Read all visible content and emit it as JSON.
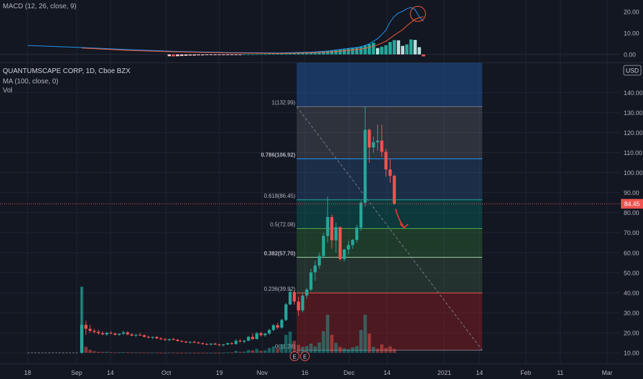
{
  "colors": {
    "background": "#131722",
    "grid": "#1f2433",
    "up": "#26a69a",
    "down": "#ef5350",
    "macd_line": "#2196f3",
    "signal_line": "#ff5a36",
    "price_line": "#ef5350",
    "fib_text": "#b2b5be"
  },
  "macd": {
    "label": "MACD (12, 26, close, 9)",
    "axis_ticks": [
      "20.00",
      "10.00",
      "0.00"
    ],
    "macd_line": [
      [
        0,
        4.2
      ],
      [
        12,
        3.3
      ],
      [
        24,
        2.3
      ],
      [
        36,
        1.4
      ],
      [
        48,
        0.9
      ],
      [
        60,
        0.7
      ],
      [
        64,
        0.9
      ],
      [
        68,
        1.1
      ],
      [
        72,
        1.6
      ],
      [
        76,
        2.6
      ],
      [
        80,
        3.5
      ],
      [
        82,
        5.0
      ],
      [
        84,
        7.4
      ],
      [
        85,
        9.3
      ],
      [
        86,
        11.4
      ],
      [
        87,
        15.2
      ],
      [
        88,
        17.8
      ],
      [
        89,
        19.4
      ],
      [
        90,
        20.2
      ],
      [
        91,
        21.4
      ],
      [
        92,
        22.0
      ],
      [
        93,
        21.0
      ],
      [
        94,
        17.6
      ],
      [
        95,
        15.5
      ]
    ],
    "signal_line": [
      [
        13,
        3.0
      ],
      [
        24,
        1.9
      ],
      [
        36,
        1.2
      ],
      [
        48,
        0.7
      ],
      [
        60,
        0.5
      ],
      [
        64,
        0.6
      ],
      [
        68,
        0.8
      ],
      [
        72,
        1.1
      ],
      [
        76,
        1.7
      ],
      [
        80,
        2.5
      ],
      [
        82,
        3.3
      ],
      [
        84,
        4.5
      ],
      [
        86,
        6.2
      ],
      [
        88,
        9.0
      ],
      [
        90,
        11.6
      ],
      [
        91,
        13.4
      ],
      [
        92,
        15.0
      ],
      [
        93,
        16.5
      ],
      [
        94,
        17.2
      ],
      [
        95,
        17.6
      ]
    ],
    "histogram": [
      [
        34,
        -0.8
      ],
      [
        35,
        -0.9
      ],
      [
        36,
        -0.8
      ],
      [
        37,
        -0.7
      ],
      [
        38,
        -0.6
      ],
      [
        39,
        -0.5
      ],
      [
        40,
        -0.5
      ],
      [
        41,
        -0.4
      ],
      [
        42,
        -0.4
      ],
      [
        43,
        -0.3
      ],
      [
        44,
        -0.3
      ],
      [
        45,
        -0.3
      ],
      [
        46,
        -0.2
      ],
      [
        47,
        -0.2
      ],
      [
        48,
        -0.2
      ],
      [
        49,
        -0.2
      ],
      [
        50,
        -0.1
      ],
      [
        51,
        -0.1
      ],
      [
        52,
        0.1
      ],
      [
        53,
        0.1
      ],
      [
        54,
        0.1
      ],
      [
        55,
        0.2
      ],
      [
        56,
        0.2
      ],
      [
        57,
        0.2
      ],
      [
        58,
        0.3
      ],
      [
        59,
        0.3
      ],
      [
        60,
        0.3
      ],
      [
        61,
        0.4
      ],
      [
        62,
        0.4
      ],
      [
        63,
        0.5
      ],
      [
        64,
        0.5
      ],
      [
        65,
        0.6
      ],
      [
        66,
        0.7
      ],
      [
        67,
        0.8
      ],
      [
        68,
        0.9
      ],
      [
        69,
        1.0
      ],
      [
        70,
        1.2
      ],
      [
        71,
        1.4
      ],
      [
        72,
        1.6
      ],
      [
        73,
        1.8
      ],
      [
        74,
        2.0
      ],
      [
        75,
        2.3
      ],
      [
        76,
        2.5
      ],
      [
        77,
        2.8
      ],
      [
        78,
        3.1
      ],
      [
        79,
        3.4
      ],
      [
        80,
        3.8
      ],
      [
        81,
        4.2
      ],
      [
        82,
        4.8
      ],
      [
        83,
        5.5
      ],
      [
        84,
        3.0
      ],
      [
        85,
        3.6
      ],
      [
        86,
        4.3
      ],
      [
        87,
        5.8
      ],
      [
        88,
        6.7
      ],
      [
        89,
        6.6
      ],
      [
        90,
        4.0
      ],
      [
        91,
        4.7
      ],
      [
        92,
        7.0
      ],
      [
        93,
        6.8
      ],
      [
        94,
        3.4
      ],
      [
        95,
        -0.9
      ]
    ]
  },
  "main": {
    "symbol": "QUANTUMSCAPE CORP, 1D, Cboe BZX",
    "ma_label": "MA (100, close, 0)",
    "vol_label": "Vol",
    "currency": "USD",
    "axis_ticks": [
      "140.00",
      "130.00",
      "120.00",
      "110.00",
      "100.00",
      "90.00",
      "80.00",
      "70.00",
      "60.00",
      "50.00",
      "40.00",
      "30.00",
      "20.00",
      "10.00"
    ],
    "price_label": "84.45",
    "badge_e1": "E",
    "badge_e2": "E",
    "x_ticks": [
      "18",
      "Sep",
      "14",
      "Oct",
      "19",
      "Nov",
      "16",
      "Dec",
      "14",
      "2021",
      "14",
      "Feb",
      "11",
      "Mar"
    ]
  },
  "chart_data": {
    "type": "candlestick",
    "title": "QUANTUMSCAPE CORP, 1D, Cboe BZX",
    "ylabel": "USD",
    "ylim": [
      7,
      148
    ],
    "x_axis": [
      "18",
      "Sep",
      "14",
      "Oct",
      "19",
      "Nov",
      "16",
      "Dec",
      "14",
      "2021",
      "14",
      "Feb",
      "11",
      "Mar"
    ],
    "last_price": 84.45,
    "fib_levels": [
      {
        "label": "1(132.99)",
        "value": 132.99
      },
      {
        "label": "0.786(106.92)",
        "value": 106.92
      },
      {
        "label": "0.618(86.45)",
        "value": 86.45
      },
      {
        "label": "0.5(72.08)",
        "value": 72.08
      },
      {
        "label": "0.382(57.70)",
        "value": 57.7
      },
      {
        "label": "0.236(39.92)",
        "value": 39.92
      },
      {
        "label": "0(11.28)",
        "value": 11.28
      }
    ],
    "pre_listing": [
      [
        0,
        10.0
      ],
      [
        1,
        10.0
      ],
      [
        2,
        10.0
      ],
      [
        3,
        10.0
      ],
      [
        4,
        10.0
      ],
      [
        5,
        10.0
      ],
      [
        6,
        10.0
      ],
      [
        7,
        10.0
      ],
      [
        8,
        10.0
      ],
      [
        9,
        10.0
      ],
      [
        10,
        10.0
      ],
      [
        11,
        10.0
      ],
      [
        12,
        10.0
      ]
    ],
    "candles": [
      [
        13,
        10.0,
        43.0,
        9.5,
        24.0
      ],
      [
        14,
        24.0,
        26.0,
        19.0,
        22.0
      ],
      [
        15,
        22.0,
        24.0,
        20.0,
        21.0
      ],
      [
        16,
        21.0,
        22.0,
        19.5,
        20.5
      ],
      [
        17,
        20.5,
        21.5,
        19.0,
        19.8
      ],
      [
        18,
        19.8,
        20.8,
        18.8,
        19.2
      ],
      [
        19,
        19.2,
        20.5,
        18.5,
        20.0
      ],
      [
        20,
        20.0,
        20.8,
        19.2,
        19.6
      ],
      [
        21,
        19.6,
        20.2,
        18.6,
        19.0
      ],
      [
        22,
        19.0,
        19.8,
        18.4,
        19.5
      ],
      [
        23,
        19.5,
        21.0,
        19.0,
        20.2
      ],
      [
        24,
        20.2,
        20.8,
        18.8,
        19.2
      ],
      [
        25,
        19.2,
        19.8,
        18.2,
        18.6
      ],
      [
        26,
        18.6,
        19.4,
        17.8,
        19.0
      ],
      [
        27,
        19.0,
        20.0,
        18.4,
        18.8
      ],
      [
        28,
        18.8,
        19.2,
        17.6,
        18.0
      ],
      [
        29,
        18.0,
        18.6,
        17.2,
        17.6
      ],
      [
        30,
        17.6,
        18.2,
        16.8,
        17.9
      ],
      [
        31,
        17.9,
        18.4,
        16.9,
        17.2
      ],
      [
        32,
        17.2,
        17.8,
        16.4,
        16.8
      ],
      [
        33,
        16.8,
        17.4,
        16.0,
        16.4
      ],
      [
        34,
        16.4,
        17.0,
        15.8,
        16.9
      ],
      [
        35,
        16.9,
        17.4,
        16.2,
        16.5
      ],
      [
        36,
        16.5,
        17.0,
        15.6,
        15.9
      ],
      [
        37,
        15.9,
        16.4,
        15.2,
        15.6
      ],
      [
        38,
        15.6,
        16.0,
        14.8,
        15.2
      ],
      [
        39,
        15.2,
        15.8,
        14.6,
        15.5
      ],
      [
        40,
        15.5,
        16.0,
        14.9,
        15.1
      ],
      [
        41,
        15.1,
        15.6,
        14.4,
        14.8
      ],
      [
        42,
        14.8,
        15.2,
        14.0,
        14.4
      ],
      [
        43,
        14.4,
        14.9,
        13.8,
        14.2
      ],
      [
        44,
        14.2,
        14.8,
        13.6,
        14.6
      ],
      [
        45,
        14.6,
        15.0,
        14.0,
        14.1
      ],
      [
        46,
        14.1,
        14.6,
        13.4,
        13.8
      ],
      [
        47,
        13.8,
        14.4,
        13.2,
        14.2
      ],
      [
        48,
        14.2,
        15.2,
        13.8,
        14.8
      ],
      [
        49,
        14.8,
        15.4,
        14.0,
        14.4
      ],
      [
        50,
        14.4,
        16.8,
        14.0,
        16.0
      ],
      [
        51,
        16.0,
        17.0,
        15.0,
        15.6
      ],
      [
        52,
        15.6,
        16.4,
        14.8,
        16.1
      ],
      [
        53,
        16.1,
        18.4,
        15.8,
        18.0
      ],
      [
        54,
        18.0,
        19.8,
        16.4,
        16.9
      ],
      [
        55,
        16.9,
        20.4,
        16.6,
        19.8
      ],
      [
        56,
        19.8,
        20.6,
        18.2,
        18.8
      ],
      [
        57,
        18.8,
        20.0,
        18.0,
        19.6
      ],
      [
        58,
        19.6,
        22.0,
        19.0,
        21.4
      ],
      [
        59,
        21.4,
        24.4,
        20.8,
        23.8
      ],
      [
        60,
        23.8,
        25.0,
        21.8,
        22.6
      ],
      [
        61,
        22.6,
        27.0,
        22.0,
        26.4
      ],
      [
        62,
        26.4,
        35.0,
        25.8,
        34.2
      ],
      [
        63,
        34.2,
        42.0,
        33.8,
        40.4
      ],
      [
        64,
        40.4,
        41.0,
        34.0,
        35.6
      ],
      [
        65,
        35.6,
        38.0,
        28.5,
        31.2
      ],
      [
        66,
        31.2,
        40.0,
        30.2,
        38.6
      ],
      [
        67,
        38.6,
        42.5,
        37.0,
        41.6
      ],
      [
        68,
        41.6,
        52.0,
        40.8,
        50.2
      ],
      [
        69,
        50.2,
        56.0,
        46.0,
        53.6
      ],
      [
        70,
        53.6,
        60.0,
        52.0,
        58.4
      ],
      [
        71,
        58.4,
        70.0,
        57.2,
        68.4
      ],
      [
        72,
        68.4,
        88.0,
        65.0,
        77.8
      ],
      [
        73,
        77.8,
        79.0,
        62.0,
        66.2
      ],
      [
        74,
        66.2,
        75.0,
        60.0,
        72.8
      ],
      [
        75,
        72.8,
        73.0,
        56.0,
        56.8
      ],
      [
        76,
        56.8,
        62.0,
        55.6,
        61.6
      ],
      [
        77,
        61.6,
        66.0,
        59.0,
        63.8
      ],
      [
        78,
        63.8,
        67.0,
        62.0,
        66.4
      ],
      [
        79,
        66.4,
        74.0,
        65.0,
        72.6
      ],
      [
        80,
        72.6,
        86.0,
        71.0,
        85.0
      ],
      [
        81,
        85.0,
        132.99,
        83.0,
        121.4
      ],
      [
        82,
        121.4,
        122.0,
        105.0,
        112.6
      ],
      [
        83,
        112.6,
        118.0,
        110.0,
        115.2
      ],
      [
        84,
        115.2,
        124.0,
        111.0,
        116.0
      ],
      [
        85,
        116.0,
        124.0,
        108.0,
        110.4
      ],
      [
        86,
        110.4,
        112.0,
        98.0,
        101.6
      ],
      [
        87,
        101.6,
        107.0,
        95.0,
        98.4
      ],
      [
        88,
        98.4,
        99.0,
        84.0,
        84.45
      ]
    ],
    "volume": [
      [
        13,
        43.0,
        1
      ],
      [
        14,
        13.0,
        0
      ],
      [
        15,
        11.5,
        0
      ],
      [
        16,
        10.8,
        0
      ],
      [
        17,
        10.5,
        0
      ],
      [
        18,
        10.4,
        0
      ],
      [
        19,
        10.5,
        1
      ],
      [
        20,
        10.3,
        0
      ],
      [
        21,
        10.2,
        0
      ],
      [
        22,
        10.3,
        1
      ],
      [
        23,
        10.4,
        1
      ],
      [
        24,
        10.3,
        0
      ],
      [
        25,
        10.2,
        0
      ],
      [
        26,
        10.2,
        1
      ],
      [
        27,
        10.2,
        0
      ],
      [
        28,
        10.2,
        0
      ],
      [
        29,
        10.1,
        0
      ],
      [
        30,
        10.2,
        1
      ],
      [
        31,
        10.1,
        0
      ],
      [
        32,
        10.1,
        0
      ],
      [
        33,
        10.1,
        0
      ],
      [
        34,
        10.2,
        1
      ],
      [
        35,
        10.1,
        0
      ],
      [
        36,
        10.1,
        0
      ],
      [
        37,
        10.1,
        0
      ],
      [
        38,
        10.1,
        0
      ],
      [
        39,
        10.1,
        1
      ],
      [
        40,
        10.1,
        0
      ],
      [
        41,
        10.1,
        0
      ],
      [
        42,
        10.1,
        0
      ],
      [
        43,
        10.0,
        0
      ],
      [
        44,
        10.1,
        1
      ],
      [
        45,
        10.0,
        0
      ],
      [
        46,
        10.1,
        0
      ],
      [
        47,
        10.1,
        1
      ],
      [
        48,
        10.3,
        1
      ],
      [
        49,
        10.2,
        0
      ],
      [
        50,
        11.0,
        1
      ],
      [
        51,
        10.5,
        0
      ],
      [
        52,
        10.6,
        1
      ],
      [
        53,
        11.4,
        1
      ],
      [
        54,
        11.2,
        0
      ],
      [
        55,
        12.0,
        1
      ],
      [
        56,
        11.0,
        0
      ],
      [
        57,
        11.2,
        1
      ],
      [
        58,
        12.4,
        1
      ],
      [
        59,
        13.2,
        1
      ],
      [
        60,
        12.0,
        0
      ],
      [
        61,
        14.2,
        1
      ],
      [
        62,
        19.0,
        1
      ],
      [
        63,
        20.6,
        1
      ],
      [
        64,
        16.0,
        0
      ],
      [
        65,
        14.0,
        0
      ],
      [
        66,
        13.0,
        1
      ],
      [
        67,
        13.4,
        1
      ],
      [
        68,
        14.6,
        1
      ],
      [
        69,
        13.2,
        1
      ],
      [
        70,
        15.2,
        1
      ],
      [
        71,
        20.8,
        1
      ],
      [
        72,
        29.0,
        1
      ],
      [
        73,
        19.0,
        0
      ],
      [
        74,
        15.0,
        1
      ],
      [
        75,
        13.0,
        0
      ],
      [
        76,
        12.2,
        1
      ],
      [
        77,
        11.8,
        1
      ],
      [
        78,
        12.8,
        1
      ],
      [
        79,
        13.4,
        1
      ],
      [
        80,
        21.4,
        1
      ],
      [
        81,
        29.0,
        1
      ],
      [
        82,
        19.6,
        0
      ],
      [
        83,
        13.0,
        1
      ],
      [
        84,
        12.0,
        0
      ],
      [
        85,
        14.2,
        0
      ],
      [
        86,
        12.4,
        0
      ],
      [
        87,
        13.2,
        0
      ],
      [
        88,
        12.0,
        0
      ]
    ]
  }
}
